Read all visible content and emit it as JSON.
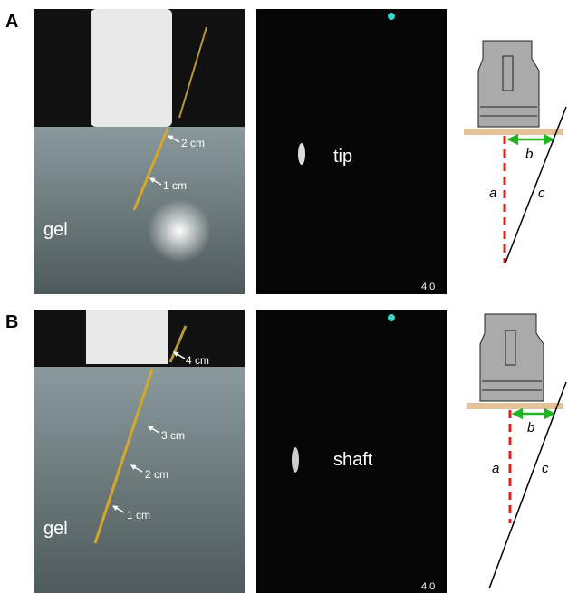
{
  "panels": [
    {
      "label": "A",
      "photo": {
        "medium": "gel",
        "markers": [
          "2 cm",
          "1 cm"
        ]
      },
      "ultrasound": {
        "label": "tip",
        "depth": "4.0"
      },
      "diagram": {
        "a": "a",
        "b": "b",
        "c": "c"
      }
    },
    {
      "label": "B",
      "photo": {
        "medium": "gel",
        "markers": [
          "4 cm",
          "3 cm",
          "2 cm",
          "1 cm"
        ]
      },
      "ultrasound": {
        "label": "shaft",
        "depth": "4.0"
      },
      "diagram": {
        "a": "a",
        "b": "b",
        "c": "c"
      }
    }
  ]
}
